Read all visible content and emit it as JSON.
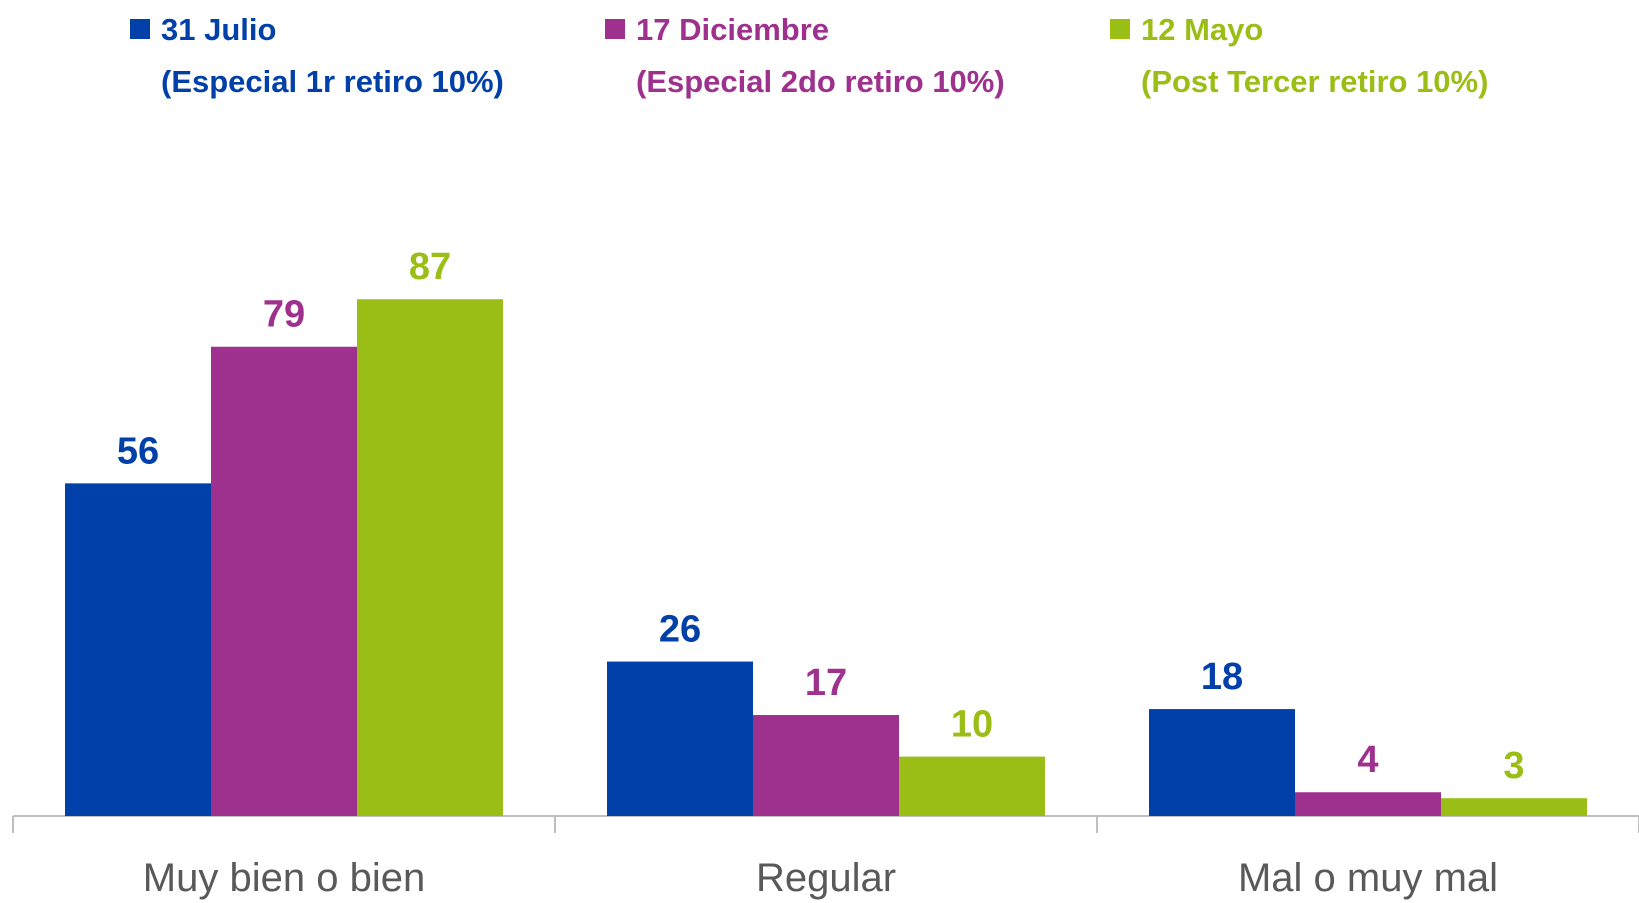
{
  "chart_data": {
    "type": "bar",
    "categories": [
      "Muy bien o bien",
      "Regular",
      "Mal o muy mal"
    ],
    "series": [
      {
        "name": "31 Julio\n(Especial 1r retiro 10%)",
        "color": "#0040a8",
        "values": [
          56,
          26,
          18
        ]
      },
      {
        "name": "17 Diciembre\n(Especial 2do retiro 10%)",
        "color": "#9e318e",
        "values": [
          79,
          17,
          4
        ]
      },
      {
        "name": "12 Mayo\n(Post Tercer retiro 10%)",
        "color": "#9bbe16",
        "values": [
          87,
          10,
          3
        ]
      }
    ],
    "legend": "top"
  }
}
